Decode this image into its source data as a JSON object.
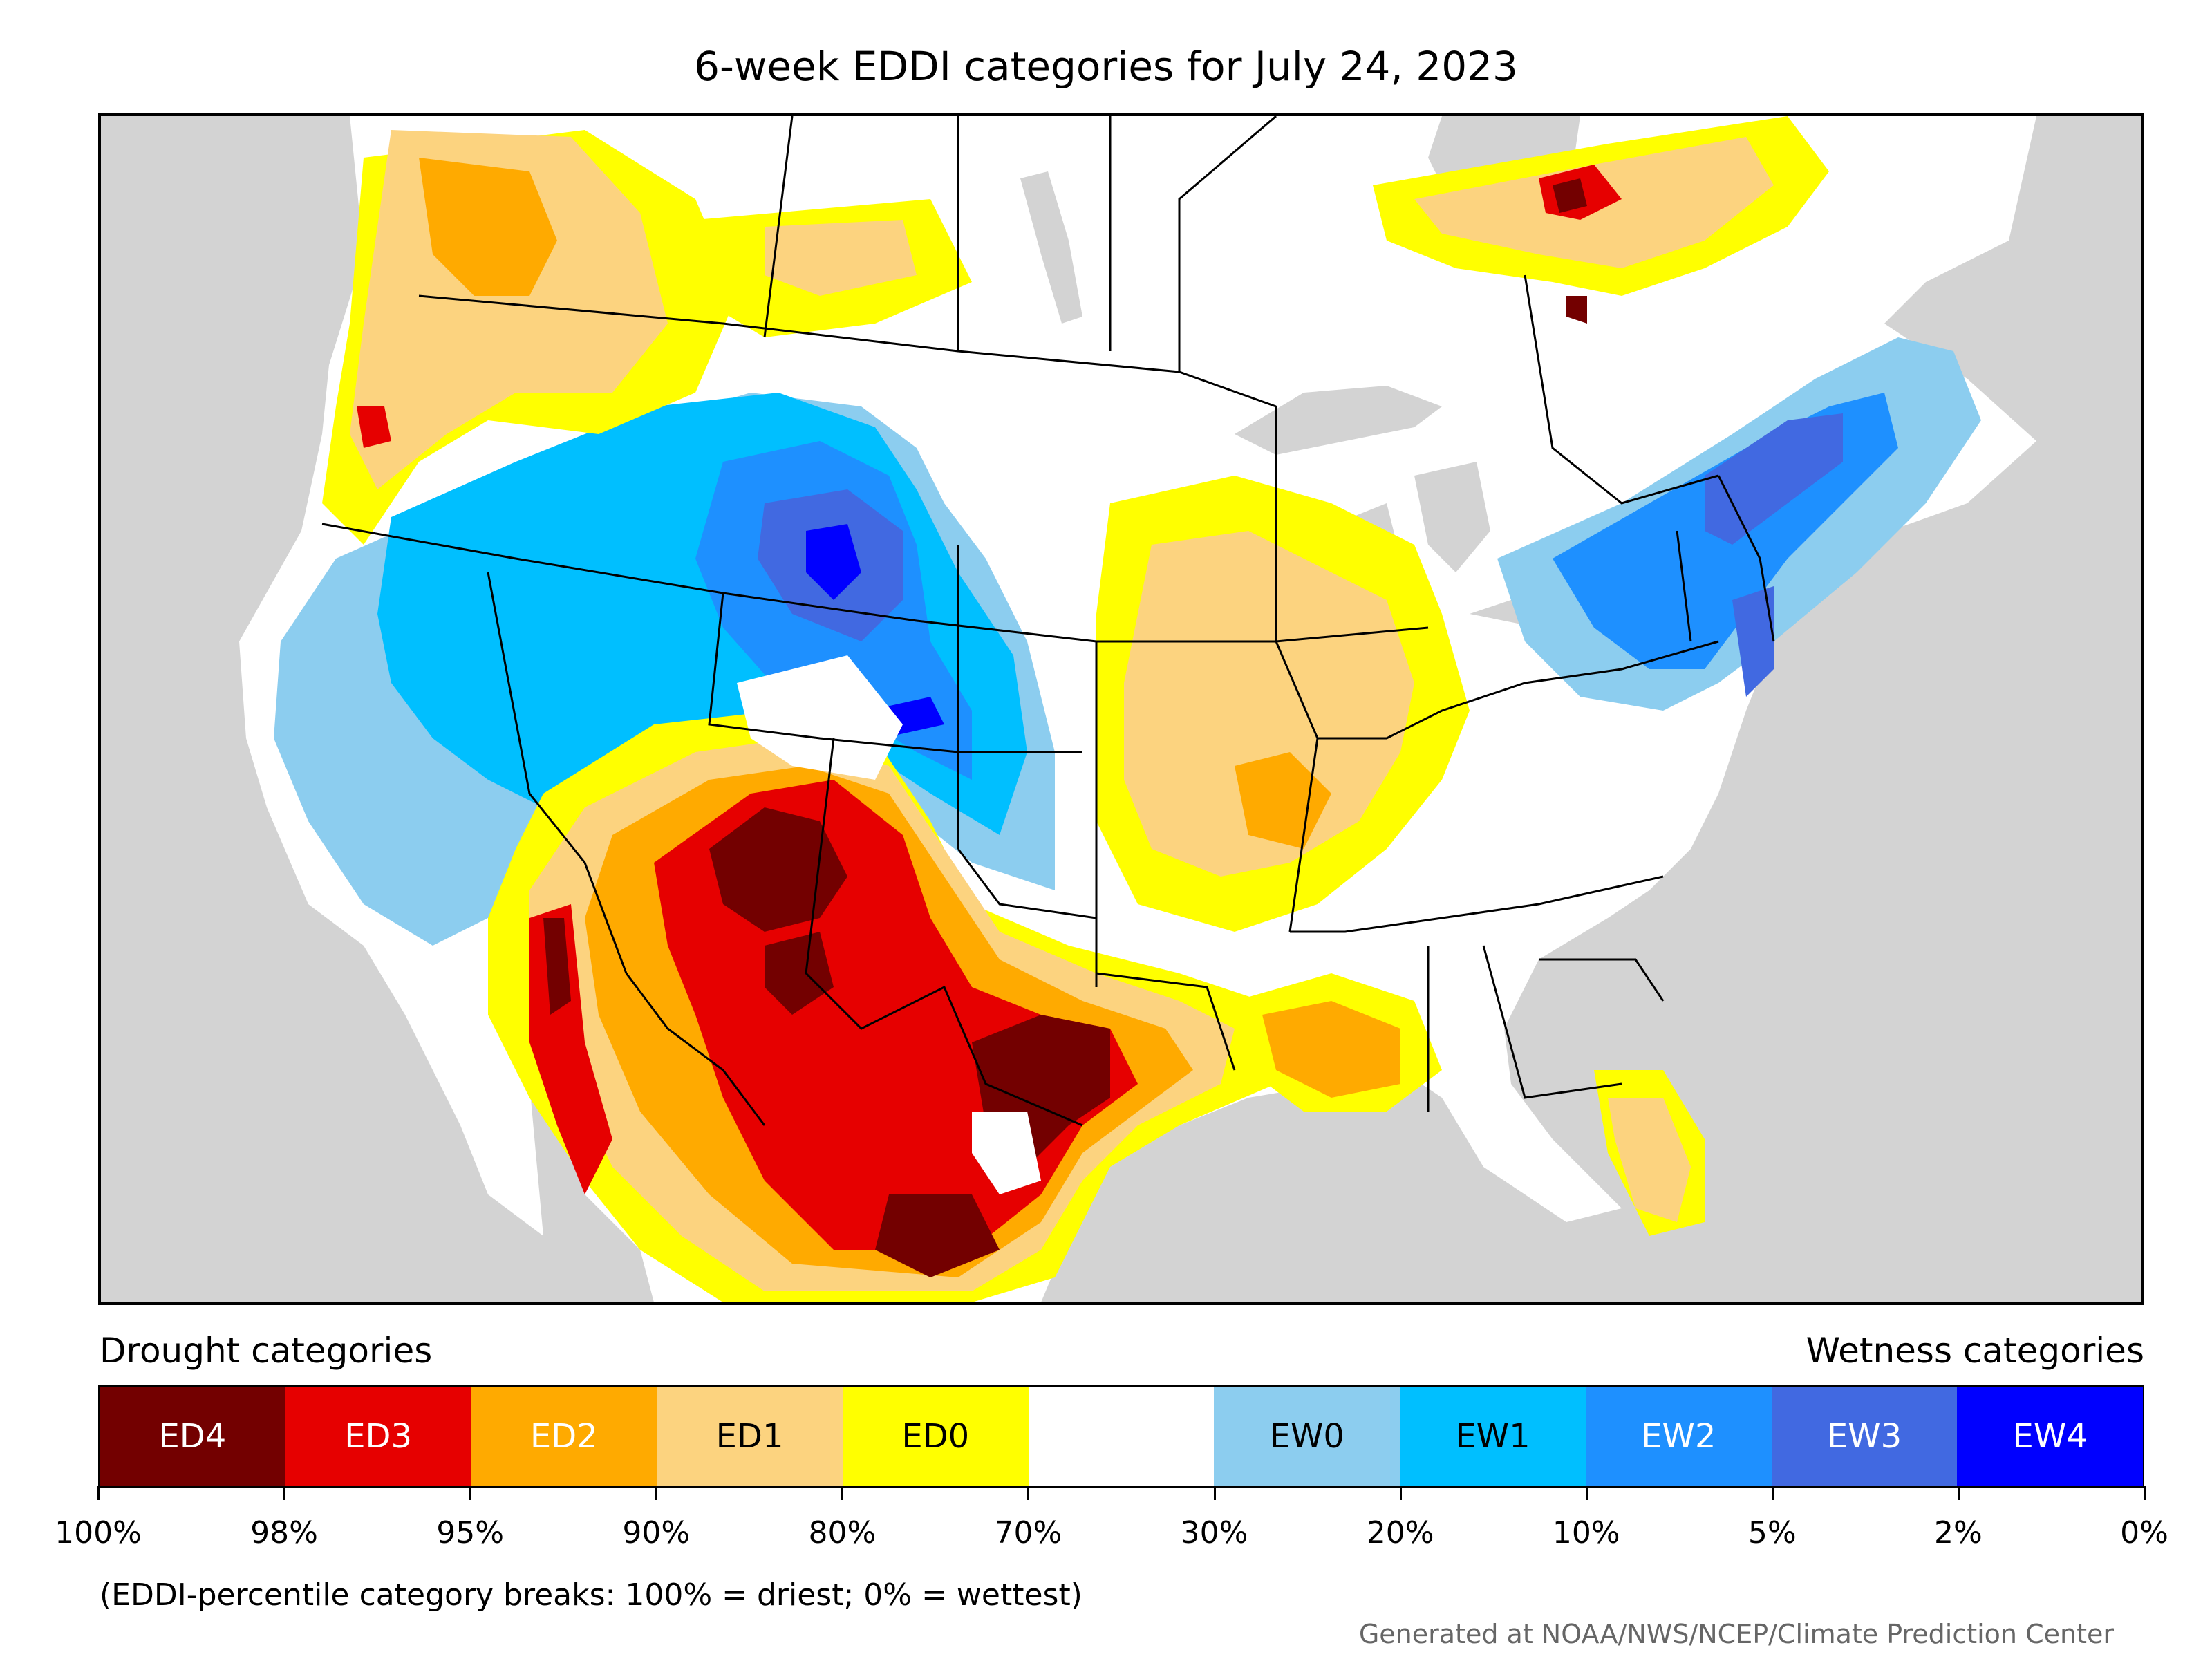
{
  "title": "6-week EDDI categories for July 24, 2023",
  "map": {
    "background_color": "#d3d3d3",
    "land_color": "#ffffff",
    "water_color": "#d3d3d3",
    "boundary_color": "#000000"
  },
  "legend": {
    "left_heading": "Drought categories",
    "right_heading": "Wetness categories",
    "categories": [
      {
        "label": "ED4",
        "color": "#730000",
        "text_color": "#ffffff"
      },
      {
        "label": "ED3",
        "color": "#e60000",
        "text_color": "#ffffff"
      },
      {
        "label": "ED2",
        "color": "#ffaa00",
        "text_color": "#ffffff"
      },
      {
        "label": "ED1",
        "color": "#fcd37f",
        "text_color": "#000000"
      },
      {
        "label": "ED0",
        "color": "#ffff00",
        "text_color": "#000000"
      },
      {
        "label": "",
        "color": "#ffffff",
        "text_color": "#000000"
      },
      {
        "label": "EW0",
        "color": "#8ccdef",
        "text_color": "#000000"
      },
      {
        "label": "EW1",
        "color": "#00bfff",
        "text_color": "#000000"
      },
      {
        "label": "EW2",
        "color": "#1e90ff",
        "text_color": "#ffffff"
      },
      {
        "label": "EW3",
        "color": "#4169e1",
        "text_color": "#ffffff"
      },
      {
        "label": "EW4",
        "color": "#0000ff",
        "text_color": "#ffffff"
      }
    ],
    "breaks": [
      "100%",
      "98%",
      "95%",
      "90%",
      "80%",
      "70%",
      "30%",
      "20%",
      "10%",
      "5%",
      "2%",
      "0%"
    ]
  },
  "note": "(EDDI-percentile category breaks: 100% = driest; 0% = wettest)",
  "credit": "Generated at NOAA/NWS/NCEP/Climate Prediction Center"
}
